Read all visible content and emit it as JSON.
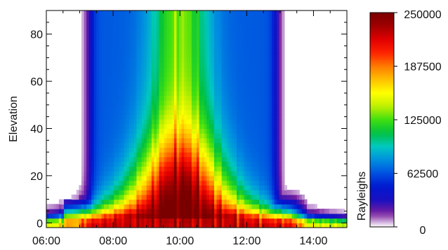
{
  "chart_data": {
    "type": "heatmap",
    "title": "",
    "xlabel": "",
    "ylabel": "Elevation",
    "colorbar_label": "Rayleighs",
    "x_unit": "time of day (hours)",
    "xlim": [
      6.0,
      15.0
    ],
    "ylim": [
      -2,
      90
    ],
    "x_ticks": [
      {
        "value": 6,
        "label": "06:00"
      },
      {
        "value": 8,
        "label": "08:00"
      },
      {
        "value": 10,
        "label": "10:00"
      },
      {
        "value": 12,
        "label": "12:00"
      },
      {
        "value": 14,
        "label": "14:00"
      }
    ],
    "y_ticks": [
      {
        "value": 0,
        "label": "0"
      },
      {
        "value": 20,
        "label": "20"
      },
      {
        "value": 40,
        "label": "40"
      },
      {
        "value": 60,
        "label": "60"
      },
      {
        "value": 80,
        "label": "80"
      }
    ],
    "colorbar": {
      "min": 0,
      "max": 250000,
      "ticks": [
        {
          "value": 0,
          "label": "0"
        },
        {
          "value": 62500,
          "label": "62500"
        },
        {
          "value": 125000,
          "label": "125000"
        },
        {
          "value": 187500,
          "label": "187500"
        },
        {
          "value": 250000,
          "label": "250000"
        }
      ],
      "colormap": [
        "#ffffff",
        "#7a1f9e",
        "#1a0fc0",
        "#0018d0",
        "#0050e0",
        "#0090e0",
        "#00c8c0",
        "#00c040",
        "#40e010",
        "#c0f000",
        "#ffff00",
        "#ffc000",
        "#ff7a00",
        "#ff2000",
        "#e00000",
        "#a00000",
        "#7a0000"
      ]
    },
    "grid": false,
    "data_summary": {
      "emission_onset": 6.5,
      "emission_end": 13.8,
      "peak_time": 10.0,
      "peak_elevation": 6,
      "peak_value": 250000
    }
  }
}
